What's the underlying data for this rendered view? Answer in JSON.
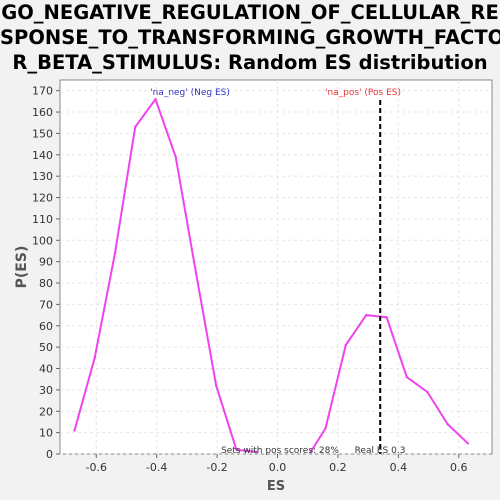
{
  "chart_data": {
    "type": "line",
    "title_lines": [
      "GO_NEGATIVE_REGULATION_OF_CELLULAR_RE",
      "SPONSE_TO_TRANSFORMING_GROWTH_FACTO",
      "R_BETA_STIMULUS: Random ES distribution"
    ],
    "xlabel": "ES",
    "ylabel": "P(ES)",
    "xlim": [
      -0.72,
      0.71
    ],
    "ylim": [
      0,
      175
    ],
    "xticks": [
      -0.6,
      -0.4,
      -0.2,
      0.0,
      0.2,
      0.4,
      0.6
    ],
    "xtick_labels": [
      "-0.6",
      "-0.4",
      "-0.2",
      "0.0",
      "0.2",
      "0.4",
      "0.6"
    ],
    "yticks": [
      0,
      10,
      20,
      30,
      40,
      50,
      60,
      70,
      80,
      90,
      100,
      110,
      120,
      130,
      140,
      150,
      160,
      170
    ],
    "ytick_labels": [
      "0",
      "10",
      "20",
      "30",
      "40",
      "50",
      "60",
      "70",
      "80",
      "90",
      "100",
      "110",
      "120",
      "130",
      "140",
      "150",
      "160",
      "170"
    ],
    "grid": true,
    "series": [
      {
        "name": "'na_neg' (Neg ES)",
        "color": "#3333cc",
        "line_color": "#ee44ee",
        "x": [
          -0.672,
          -0.605,
          -0.538,
          -0.471,
          -0.404,
          -0.337,
          -0.27,
          -0.203,
          -0.136,
          -0.069
        ],
        "y": [
          11,
          45,
          94,
          153,
          166,
          139,
          85,
          32,
          2,
          1
        ]
      },
      {
        "name": "'na_pos' (Pos ES)",
        "color": "#ee3333",
        "line_color": "#ee44ee",
        "x": [
          0.11,
          0.159,
          0.226,
          0.294,
          0.361,
          0.428,
          0.496,
          0.563,
          0.63
        ],
        "y": [
          1,
          12,
          51,
          65,
          64,
          36,
          29,
          14,
          5
        ]
      }
    ],
    "real_es": 0.34,
    "annotations": {
      "pos_fraction": "Sets with pos scores: 28%",
      "real_es": "Real ES 0.3"
    }
  }
}
